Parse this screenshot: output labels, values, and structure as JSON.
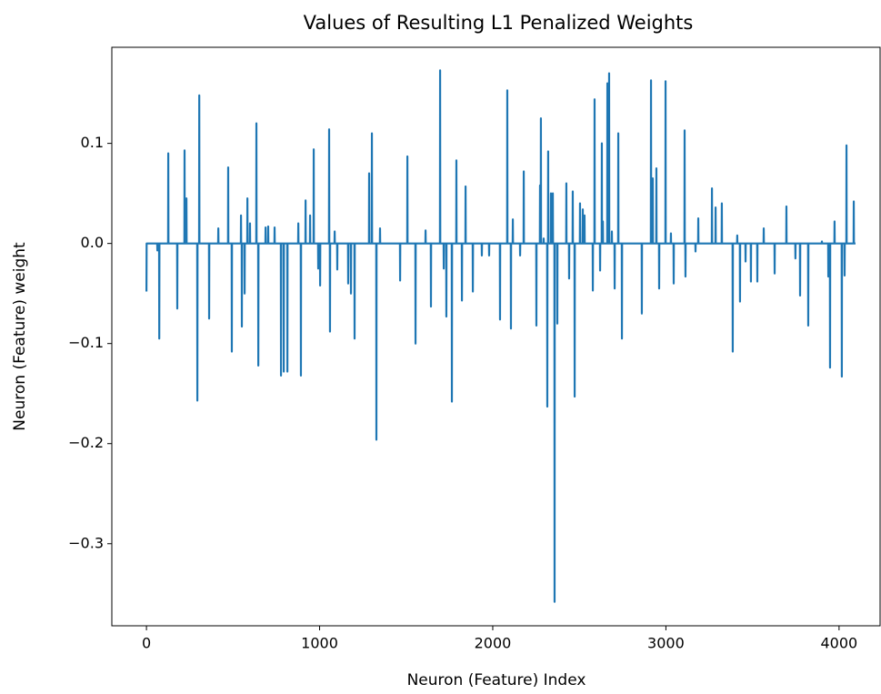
{
  "chart_data": {
    "type": "line",
    "title": "Values of Resulting L1 Penalized Weights",
    "x_label": "Neuron (Feature) Index",
    "y_label": "Neuron (Feature) weight",
    "color": "#1f77b4",
    "xlim": [
      -200,
      4237
    ],
    "ylim": [
      -0.382,
      0.196
    ],
    "xticks": [
      0,
      1000,
      2000,
      3000,
      4000
    ],
    "yticks": [
      {
        "value": -0.3,
        "label": "−0.3"
      },
      {
        "value": -0.2,
        "label": "−0.2"
      },
      {
        "value": -0.1,
        "label": "−0.1"
      },
      {
        "value": 0,
        "label": "0.0"
      },
      0.1
    ],
    "grid": false,
    "x": [
      0,
      1,
      62,
      63,
      64,
      73,
      74,
      75,
      125,
      126,
      127,
      177,
      178,
      179,
      219,
      220,
      221,
      230,
      231,
      232,
      293,
      294,
      295,
      304,
      305,
      306,
      361,
      362,
      363,
      414,
      415,
      416,
      471,
      472,
      473,
      492,
      493,
      494,
      545,
      546,
      547,
      550,
      551,
      552,
      566,
      567,
      568,
      582,
      583,
      584,
      597,
      598,
      599,
      634,
      635,
      636,
      645,
      646,
      647,
      687,
      688,
      689,
      702,
      703,
      704,
      739,
      740,
      741,
      776,
      777,
      778,
      792,
      793,
      794,
      813,
      814,
      815,
      876,
      877,
      878,
      891,
      892,
      893,
      918,
      919,
      920,
      944,
      945,
      946,
      965,
      966,
      967,
      991,
      992,
      993,
      1002,
      1003,
      1004,
      1054,
      1055,
      1056,
      1059,
      1060,
      1061,
      1086,
      1087,
      1088,
      1101,
      1102,
      1103,
      1164,
      1165,
      1166,
      1180,
      1181,
      1182,
      1201,
      1202,
      1203,
      1285,
      1286,
      1287,
      1301,
      1302,
      1303,
      1327,
      1328,
      1329,
      1348,
      1349,
      1350,
      1464,
      1465,
      1466,
      1506,
      1507,
      1508,
      1553,
      1554,
      1555,
      1611,
      1612,
      1613,
      1642,
      1643,
      1644,
      1695,
      1696,
      1697,
      1716,
      1717,
      1718,
      1731,
      1732,
      1733,
      1763,
      1764,
      1765,
      1789,
      1790,
      1791,
      1821,
      1822,
      1823,
      1842,
      1843,
      1844,
      1884,
      1885,
      1886,
      1936,
      1937,
      1938,
      1978,
      1979,
      1980,
      2041,
      2042,
      2043,
      2083,
      2084,
      2085,
      2104,
      2105,
      2106,
      2115,
      2116,
      2117,
      2157,
      2158,
      2159,
      2178,
      2179,
      2180,
      2251,
      2252,
      2253,
      2272,
      2273,
      2274,
      2277,
      2278,
      2279,
      2293,
      2294,
      2295,
      2314,
      2315,
      2316,
      2319,
      2320,
      2321,
      2335,
      2336,
      2337,
      2346,
      2347,
      2348,
      2356,
      2357,
      2358,
      2372,
      2373,
      2374,
      2424,
      2425,
      2426,
      2440,
      2441,
      2442,
      2461,
      2462,
      2463,
      2472,
      2473,
      2474,
      2503,
      2504,
      2505,
      2519,
      2520,
      2521,
      2529,
      2530,
      2531,
      2577,
      2578,
      2579,
      2587,
      2588,
      2589,
      2619,
      2620,
      2621,
      2629,
      2630,
      2631,
      2635,
      2636,
      2637,
      2661,
      2662,
      2663,
      2671,
      2672,
      2673,
      2687,
      2688,
      2689,
      2703,
      2704,
      2705,
      2724,
      2725,
      2726,
      2745,
      2746,
      2747,
      2860,
      2861,
      2862,
      2913,
      2914,
      2915,
      2923,
      2924,
      2925,
      2944,
      2945,
      2946,
      2960,
      2961,
      2962,
      2997,
      2998,
      2999,
      3028,
      3029,
      3030,
      3044,
      3045,
      3046,
      3107,
      3108,
      3109,
      3112,
      3113,
      3114,
      3170,
      3171,
      3172,
      3186,
      3187,
      3188,
      3265,
      3266,
      3267,
      3286,
      3287,
      3288,
      3322,
      3323,
      3324,
      3385,
      3386,
      3387,
      3411,
      3412,
      3413,
      3427,
      3428,
      3429,
      3459,
      3460,
      3461,
      3490,
      3491,
      3492,
      3527,
      3528,
      3529,
      3564,
      3565,
      3566,
      3627,
      3628,
      3629,
      3695,
      3696,
      3697,
      3747,
      3748,
      3749,
      3774,
      3775,
      3776,
      3821,
      3822,
      3823,
      3900,
      3901,
      3902,
      3937,
      3938,
      3939,
      3947,
      3948,
      3949,
      3973,
      3974,
      3975,
      4015,
      4016,
      4017,
      4031,
      4032,
      4033,
      4042,
      4043,
      4044,
      4084,
      4085,
      4086,
      4095
    ],
    "values": [
      -0.048,
      0,
      0,
      -0.007,
      0,
      0,
      -0.095,
      0,
      0,
      0.09,
      0,
      0,
      -0.065,
      0,
      0,
      0.093,
      0,
      0,
      0.045,
      0,
      0,
      -0.157,
      0,
      0,
      0.148,
      0,
      0,
      -0.075,
      0,
      0,
      0.015,
      0,
      0,
      0.076,
      0,
      0,
      -0.108,
      0,
      0,
      0.028,
      0,
      0,
      -0.083,
      0,
      0,
      -0.05,
      0,
      0,
      0.045,
      0,
      0,
      0.02,
      0,
      0,
      0.12,
      0,
      0,
      -0.122,
      0,
      0,
      0.016,
      0,
      0,
      0.017,
      0,
      0,
      0.016,
      0,
      0,
      -0.132,
      0,
      0,
      -0.128,
      0,
      0,
      -0.128,
      0,
      0,
      0.02,
      0,
      0,
      -0.132,
      0,
      0,
      0.043,
      0,
      0,
      0.028,
      0,
      0,
      0.094,
      0,
      0,
      -0.025,
      0,
      0,
      -0.042,
      0,
      0,
      0.114,
      0,
      0,
      -0.088,
      0,
      0,
      0.012,
      0,
      0,
      -0.026,
      0,
      0,
      -0.04,
      0,
      0,
      -0.05,
      0,
      0,
      -0.095,
      0,
      0,
      0.07,
      0,
      0,
      0.11,
      0,
      0,
      -0.196,
      0,
      0,
      0.015,
      0,
      0,
      -0.037,
      0,
      0,
      0.087,
      0,
      0,
      -0.1,
      0,
      0,
      0.013,
      0,
      0,
      -0.063,
      0,
      0,
      0.173,
      0,
      0,
      -0.025,
      0,
      0,
      -0.073,
      0,
      0,
      -0.158,
      0,
      0,
      0.083,
      0,
      0,
      -0.057,
      0,
      0,
      0.057,
      0,
      0,
      -0.048,
      0,
      0,
      -0.012,
      0,
      0,
      -0.012,
      0,
      0,
      -0.076,
      0,
      0,
      0.153,
      0,
      0,
      -0.085,
      0,
      0,
      0.024,
      0,
      0,
      -0.012,
      0,
      0,
      0.072,
      0,
      0,
      -0.082,
      0,
      0,
      0.058,
      0,
      0,
      0.125,
      0,
      0,
      0.005,
      0,
      0,
      -0.163,
      0,
      0,
      0.092,
      0,
      0,
      0.05,
      0,
      0,
      0.05,
      0,
      0,
      -0.358,
      0,
      0,
      -0.08,
      0,
      0,
      0.06,
      0,
      0,
      -0.035,
      0,
      0,
      0.052,
      0,
      0,
      -0.153,
      0,
      0,
      0.04,
      0,
      0,
      0.034,
      0,
      0,
      0.028,
      0,
      0,
      -0.047,
      0,
      0,
      0.144,
      0,
      0,
      -0.027,
      0,
      0,
      0.1,
      0,
      0,
      0.022,
      0,
      0,
      0.16,
      0,
      0,
      0.17,
      0,
      0,
      0.012,
      0,
      0,
      -0.045,
      0,
      0,
      0.11,
      0,
      0,
      -0.095,
      0,
      0,
      -0.07,
      0,
      0,
      0.163,
      0,
      0,
      0.065,
      0,
      0,
      0.075,
      0,
      0,
      -0.045,
      0,
      0,
      0.162,
      0,
      0,
      0.01,
      0,
      0,
      -0.04,
      0,
      0,
      0.113,
      0,
      0,
      -0.033,
      0,
      0,
      -0.008,
      0,
      0,
      0.025,
      0,
      0,
      0.055,
      0,
      0,
      0.036,
      0,
      0,
      0.04,
      0,
      0,
      -0.108,
      0,
      0,
      0.008,
      0,
      0,
      -0.058,
      0,
      0,
      -0.018,
      0,
      0,
      -0.038,
      0,
      0,
      -0.038,
      0,
      0,
      0.015,
      0,
      0,
      -0.03,
      0,
      0,
      0.037,
      0,
      0,
      -0.015,
      0,
      0,
      -0.052,
      0,
      0,
      -0.082,
      0,
      0,
      0.002,
      0,
      0,
      -0.033,
      0,
      0,
      -0.124,
      0,
      0,
      0.022,
      0,
      0,
      -0.133,
      0,
      0,
      -0.032,
      0,
      0,
      0.098,
      0,
      0,
      0.042,
      0,
      0
    ]
  }
}
